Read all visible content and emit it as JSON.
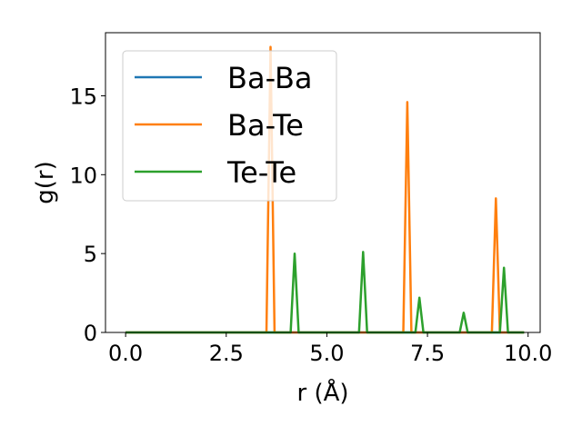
{
  "chart_data": {
    "type": "line",
    "xlabel": "r (Å)",
    "ylabel": "g(r)",
    "xlim": [
      -0.5,
      10.3
    ],
    "ylim": [
      0,
      19
    ],
    "xticks": [
      0.0,
      2.5,
      5.0,
      7.5,
      10.0
    ],
    "xtick_labels": [
      "0.0",
      "2.5",
      "5.0",
      "7.5",
      "10.0"
    ],
    "yticks": [
      0,
      5,
      10,
      15
    ],
    "ytick_labels": [
      "0",
      "5",
      "10",
      "15"
    ],
    "grid": false,
    "legend_position": "upper-left",
    "series": [
      {
        "name": "Ba-Ba",
        "color": "#1f77b4",
        "x": [
          0.0,
          9.9
        ],
        "y": [
          0,
          0
        ]
      },
      {
        "name": "Ba-Te",
        "color": "#ff7f0e",
        "x": [
          0.0,
          3.5,
          3.6,
          3.7,
          6.9,
          7.0,
          7.1,
          9.1,
          9.2,
          9.3,
          9.9
        ],
        "y": [
          0,
          0,
          18.1,
          0,
          0,
          14.6,
          0,
          0,
          8.5,
          0,
          0
        ]
      },
      {
        "name": "Te-Te",
        "color": "#2ca02c",
        "x": [
          0.0,
          4.1,
          4.2,
          4.3,
          5.8,
          5.9,
          6.0,
          7.2,
          7.3,
          7.4,
          8.3,
          8.4,
          8.5,
          9.3,
          9.4,
          9.5,
          9.9
        ],
        "y": [
          0,
          0,
          5.0,
          0,
          0,
          5.1,
          0,
          0,
          2.2,
          0,
          0,
          1.25,
          0,
          0,
          4.1,
          0,
          0
        ]
      }
    ]
  }
}
